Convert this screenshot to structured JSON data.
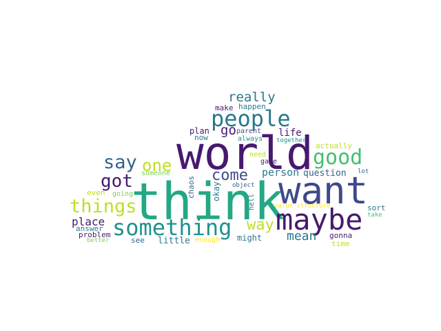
{
  "palette": {
    "dark_purple": "#46196e",
    "indigo": "#3f4a8a",
    "steel_blue": "#33638d",
    "teal_blue": "#2a788e",
    "teal": "#21908d",
    "sea_green": "#22a884",
    "green": "#44bf70",
    "light_green": "#7ad151",
    "lime": "#bddf26",
    "yellow": "#fde725"
  },
  "words": {
    "think": "think",
    "world": "world",
    "want": "want",
    "maybe": "maybe",
    "something": "something",
    "people": "people",
    "good": "good",
    "things": "things",
    "say": "say",
    "one": "one",
    "got": "got",
    "come": "come",
    "way": "way",
    "really": "really",
    "go": "go",
    "place": "place",
    "mean": "mean",
    "person": "person",
    "question": "question",
    "life": "life",
    "make": "make",
    "happen": "happen",
    "parent": "parent",
    "always": "always",
    "together": "together",
    "plan": "plan",
    "now": "now",
    "actually": "actually",
    "need": "need",
    "game": "game",
    "lot": "lot",
    "someone": "someone",
    "chaos": "chaos",
    "even": "even",
    "going": "going",
    "okay": "okay",
    "object": "object",
    "hell": "hell",
    "value": "value",
    "structure": "structure",
    "sort": "sort",
    "take": "take",
    "answer": "answer",
    "problem": "problem",
    "better": "better",
    "see": "see",
    "little": "little",
    "enough": "enough",
    "might": "might",
    "gonna": "gonna",
    "time": "time"
  }
}
